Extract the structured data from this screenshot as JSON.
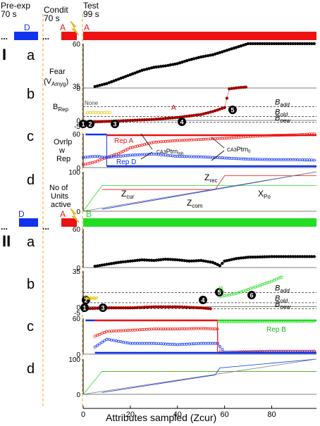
{
  "header": {
    "phase1_name": "Pre-exp",
    "phase1_time": "70 s",
    "phase2_name": "Condit",
    "phase2_time": "70 s",
    "phase3_name": "Test",
    "phase3_time": "99 s"
  },
  "colors": {
    "red": "#ee1111",
    "blue": "#1133ee",
    "green": "#22dd22",
    "darkred": "#a00000",
    "yellow": "#e8c800",
    "orange": "#ffaa00"
  },
  "panel_I": {
    "roman": "I",
    "context_labels": [
      "D",
      "A",
      "A"
    ],
    "rows": {
      "a": {
        "letter": "a",
        "ylabel": "Fear",
        "ylabel2": "(V",
        "ylabel_sub": "Amyg",
        "ylabel2_end": ")"
      },
      "b": {
        "letter": "b",
        "ylabel": "B",
        "ylabel_sub": "Rep"
      },
      "c": {
        "letter": "c",
        "ylabel": "Ovrlp",
        "ylabel2": "w",
        "ylabel3": "Rep"
      },
      "d": {
        "letter": "d",
        "ylabel": "No of",
        "ylabel2": "Units",
        "ylabel3": "active"
      }
    },
    "annotations": {
      "none_label": "None",
      "b_curve": "A",
      "rep_a": "Rep A",
      "rep_d": "Rep D",
      "ptrn_inh_pre": "CA3",
      "ptrn_inh": "Ptrn",
      "ptrn_inh_sub": "Inh",
      "ptrn0_pre": "CA3",
      "ptrn0": "Ptrn",
      "ptrn0_sub": "0",
      "zrec": "Z",
      "zrec_sub": "rec",
      "zcur": "Z",
      "zcur_sub": "cur",
      "zcom": "Z",
      "zcom_sub": "com",
      "xpo": "X",
      "xpo_sub": "Po",
      "markers": [
        "1",
        "2",
        "3",
        "4",
        "5"
      ]
    }
  },
  "panel_II": {
    "roman": "II",
    "context_labels": [
      "D",
      "A",
      "B"
    ],
    "rows": {
      "a": {
        "letter": "a"
      },
      "b": {
        "letter": "b"
      },
      "c": {
        "letter": "c"
      },
      "d": {
        "letter": "d"
      }
    },
    "annotations": {
      "b_curve": "B",
      "rep_b": "Rep B",
      "markers": [
        "1",
        "2",
        "3",
        "4",
        "5",
        "6"
      ]
    }
  },
  "b_lines": {
    "add": "B",
    "add_sub": "add",
    "old": "B",
    "old_sub": "old",
    "new": "B",
    "new_sub": "new"
  },
  "ticks": {
    "a": [
      "60",
      "0"
    ],
    "b": [
      "35",
      "0",
      "-5"
    ],
    "c": [
      "60",
      "0"
    ],
    "d": [
      "100",
      "0"
    ],
    "x": [
      "0",
      "20",
      "40",
      "60",
      "80"
    ]
  },
  "xlabel": "Attributes sampled (Zcur)",
  "chart_data": {
    "type": "line",
    "xlabel": "Attributes sampled (Zcur)",
    "xlim": [
      0,
      99
    ],
    "x_ticks": [
      0,
      20,
      40,
      60,
      80
    ],
    "panels": [
      {
        "panel": "I-a",
        "ylabel": "Fear (VAmyg)",
        "ylim": [
          0,
          60
        ],
        "series": [
          {
            "name": "Fear",
            "color": "black",
            "x": [
              5,
              10,
              15,
              20,
              25,
              30,
              35,
              40,
              45,
              50,
              55,
              60,
              65,
              70,
              75,
              80,
              85,
              90,
              95,
              99
            ],
            "y": [
              2,
              6,
              12,
              18,
              24,
              28,
              30,
              33,
              38,
              42,
              45,
              50,
              55,
              60,
              60,
              60,
              60,
              60,
              60,
              60
            ]
          }
        ]
      },
      {
        "panel": "I-b",
        "ylabel": "BRep",
        "ylim": [
          -5,
          35
        ],
        "reference_lines": {
          "B_add": 14,
          "B_old": 4,
          "B_new": -2
        },
        "series": [
          {
            "name": "A",
            "color": "darkred",
            "x": [
              0,
              10,
              20,
              30,
              40,
              50,
              55,
              60,
              62,
              65,
              70
            ],
            "y": [
              -2,
              -1,
              0,
              1,
              3,
              6,
              9,
              13,
              32,
              33,
              34
            ]
          }
        ]
      },
      {
        "panel": "I-c",
        "ylabel": "Ovrlp w Rep",
        "ylim": [
          0,
          60
        ],
        "series": [
          {
            "name": "Rep A",
            "color": "red",
            "x": [
              0,
              5,
              10,
              15,
              20,
              30,
              40,
              50,
              60,
              70,
              80,
              90,
              99
            ],
            "y": [
              5,
              10,
              18,
              25,
              35,
              45,
              48,
              50,
              52,
              55,
              57,
              58,
              60
            ]
          },
          {
            "name": "Rep D",
            "color": "blue",
            "x": [
              0,
              5,
              10,
              15,
              20,
              30,
              40,
              50,
              60,
              70,
              80,
              90,
              99
            ],
            "y": [
              18,
              20,
              18,
              20,
              22,
              24,
              20,
              19,
              17,
              15,
              14,
              14,
              13
            ]
          }
        ]
      },
      {
        "panel": "I-d",
        "ylabel": "No of Units active",
        "ylim": [
          0,
          100
        ],
        "series": [
          {
            "name": "Zrec",
            "color": "red",
            "x": [
              8,
              56,
              60,
              99
            ],
            "y": [
              55,
              55,
              90,
              90
            ]
          },
          {
            "name": "Zcur",
            "color": "green",
            "x": [
              0,
              8,
              20,
              99
            ],
            "y": [
              0,
              65,
              65,
              65
            ]
          },
          {
            "name": "Zcom",
            "color": "blue",
            "x": [
              8,
              99
            ],
            "y": [
              5,
              100
            ]
          },
          {
            "name": "XPo",
            "color": "gray",
            "x": [
              0,
              99
            ],
            "y": [
              0,
              100
            ]
          }
        ]
      },
      {
        "panel": "II-a",
        "ylabel": "Fear",
        "ylim": [
          0,
          60
        ],
        "series": [
          {
            "name": "Fear",
            "color": "black",
            "x": [
              5,
              10,
              15,
              20,
              25,
              30,
              35,
              40,
              45,
              50,
              55,
              58,
              60,
              65,
              70,
              80,
              90,
              99
            ],
            "y": [
              2,
              5,
              8,
              10,
              12,
              11,
              13,
              12,
              10,
              11,
              8,
              3,
              10,
              14,
              16,
              17,
              17,
              17
            ]
          }
        ]
      },
      {
        "panel": "II-b",
        "ylabel": "BRep",
        "ylim": [
          -5,
          35
        ],
        "reference_lines": {
          "B_add": 14,
          "B_old": 4,
          "B_new": -2
        },
        "series": [
          {
            "name": "A",
            "color": "darkred",
            "x": [
              0,
              10,
              20,
              30,
              40,
              50,
              55
            ],
            "y": [
              -2,
              -1,
              -1,
              0,
              0,
              -1,
              -2
            ]
          },
          {
            "name": "B",
            "color": "green",
            "x": [
              58,
              65,
              70,
              75,
              80,
              85
            ],
            "y": [
              10,
              13,
              17,
              21,
              25,
              30
            ]
          }
        ]
      },
      {
        "panel": "II-c",
        "ylabel": "Ovrlp w Rep",
        "ylim": [
          0,
          60
        ],
        "series": [
          {
            "name": "Rep A",
            "color": "red",
            "x": [
              5,
              10,
              20,
              30,
              40,
              50,
              57,
              58,
              70,
              80,
              90,
              99
            ],
            "y": [
              30,
              38,
              40,
              42,
              42,
              43,
              42,
              3,
              4,
              5,
              5,
              5
            ]
          },
          {
            "name": "Rep D",
            "color": "blue",
            "x": [
              5,
              10,
              20,
              30,
              40,
              50,
              57,
              60,
              99
            ],
            "y": [
              12,
              25,
              18,
              18,
              16,
              18,
              18,
              3,
              3
            ]
          },
          {
            "name": "Rep B",
            "color": "green",
            "x": [
              58,
              99
            ],
            "y": [
              54,
              55
            ]
          }
        ]
      },
      {
        "panel": "II-d",
        "ylabel": "No of Units active",
        "ylim": [
          0,
          100
        ],
        "series": [
          {
            "name": "Zrec",
            "color": "red",
            "x": [
              8,
              99
            ],
            "y": [
              65,
              65
            ]
          },
          {
            "name": "Zcur",
            "color": "green",
            "x": [
              0,
              8,
              99
            ],
            "y": [
              0,
              65,
              65
            ]
          },
          {
            "name": "Zcom",
            "color": "blue",
            "x": [
              8,
              56,
              58,
              99
            ],
            "y": [
              5,
              55,
              75,
              100
            ]
          },
          {
            "name": "XPo",
            "color": "gray",
            "x": [
              0,
              99
            ],
            "y": [
              0,
              100
            ]
          }
        ]
      }
    ]
  }
}
